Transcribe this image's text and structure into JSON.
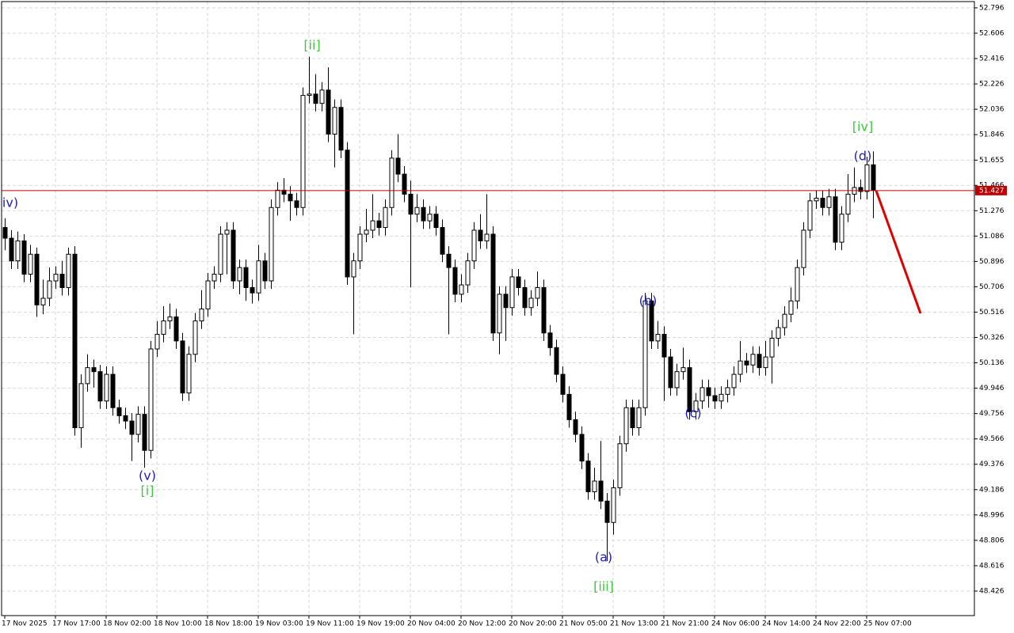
{
  "chart_data": {
    "type": "candlestick",
    "ylim": [
      48.242,
      52.843
    ],
    "xlim": [
      -0.5,
      153
    ],
    "yticks": [
      52.796,
      52.606,
      52.416,
      52.226,
      52.036,
      51.846,
      51.655,
      51.466,
      51.276,
      51.086,
      50.896,
      50.706,
      50.516,
      50.326,
      50.136,
      49.946,
      49.756,
      49.566,
      49.376,
      49.186,
      48.996,
      48.806,
      48.616,
      48.426
    ],
    "xticks": [
      {
        "value": 0,
        "label": "17 Nov 2025"
      },
      {
        "value": 8,
        "label": "17 Nov 17:00"
      },
      {
        "value": 16,
        "label": "18 Nov 02:00"
      },
      {
        "value": 24,
        "label": "18 Nov 10:00"
      },
      {
        "value": 32,
        "label": "18 Nov 18:00"
      },
      {
        "value": 40,
        "label": "19 Nov 03:00"
      },
      {
        "value": 48,
        "label": "19 Nov 11:00"
      },
      {
        "value": 56,
        "label": "19 Nov 19:00"
      },
      {
        "value": 64,
        "label": "20 Nov 04:00"
      },
      {
        "value": 72,
        "label": "20 Nov 12:00"
      },
      {
        "value": 80,
        "label": "20 Nov 20:00"
      },
      {
        "value": 88,
        "label": "21 Nov 05:00"
      },
      {
        "value": 96,
        "label": "21 Nov 13:00"
      },
      {
        "value": 104,
        "label": "21 Nov 21:00"
      },
      {
        "value": 112,
        "label": "24 Nov 06:00"
      },
      {
        "value": 120,
        "label": "24 Nov 14:00"
      },
      {
        "value": 128,
        "label": "24 Nov 22:00"
      },
      {
        "value": 136,
        "label": "25 Nov 07:00"
      }
    ],
    "grid": true,
    "current_price": 51.427,
    "current_price_color": "#c00000",
    "bull_color": "#ffffff",
    "bear_color": "#000000",
    "candles": [
      [
        51.15,
        51.22,
        50.98,
        51.07
      ],
      [
        51.07,
        51.13,
        50.84,
        50.9
      ],
      [
        50.9,
        51.12,
        50.84,
        51.05
      ],
      [
        51.05,
        51.1,
        50.74,
        50.8
      ],
      [
        50.8,
        51.02,
        50.74,
        50.95
      ],
      [
        50.95,
        51.0,
        50.48,
        50.57
      ],
      [
        50.57,
        50.76,
        50.5,
        50.62
      ],
      [
        50.62,
        50.85,
        50.56,
        50.75
      ],
      [
        50.75,
        50.86,
        50.69,
        50.8
      ],
      [
        50.8,
        50.9,
        50.64,
        50.7
      ],
      [
        50.7,
        51.0,
        50.64,
        50.95
      ],
      [
        50.95,
        51.01,
        49.59,
        49.65
      ],
      [
        49.65,
        50.05,
        49.5,
        49.98
      ],
      [
        49.98,
        50.2,
        49.92,
        50.1
      ],
      [
        50.1,
        50.16,
        49.95,
        50.07
      ],
      [
        50.07,
        50.12,
        49.79,
        49.85
      ],
      [
        49.85,
        50.11,
        49.79,
        50.05
      ],
      [
        50.05,
        50.11,
        49.74,
        49.8
      ],
      [
        49.8,
        49.86,
        49.68,
        49.74
      ],
      [
        49.74,
        49.8,
        49.64,
        49.7
      ],
      [
        49.7,
        49.76,
        49.4,
        49.6
      ],
      [
        49.6,
        49.81,
        49.54,
        49.75
      ],
      [
        49.75,
        49.81,
        49.35,
        49.48
      ],
      [
        49.48,
        50.3,
        49.42,
        50.24
      ],
      [
        50.24,
        50.45,
        50.18,
        50.35
      ],
      [
        50.35,
        50.56,
        50.29,
        50.45
      ],
      [
        50.45,
        50.58,
        50.39,
        50.48
      ],
      [
        50.48,
        50.54,
        50.24,
        50.3
      ],
      [
        50.3,
        50.36,
        49.85,
        49.91
      ],
      [
        49.91,
        50.26,
        49.85,
        50.2
      ],
      [
        50.2,
        50.51,
        50.14,
        50.45
      ],
      [
        50.45,
        50.68,
        50.39,
        50.54
      ],
      [
        50.54,
        50.81,
        50.48,
        50.75
      ],
      [
        50.75,
        50.86,
        50.69,
        50.8
      ],
      [
        50.8,
        51.16,
        50.74,
        51.1
      ],
      [
        51.1,
        51.19,
        50.8,
        51.13
      ],
      [
        51.13,
        51.19,
        50.69,
        50.75
      ],
      [
        50.75,
        50.91,
        50.65,
        50.85
      ],
      [
        50.85,
        50.91,
        50.6,
        50.7
      ],
      [
        50.7,
        50.76,
        50.58,
        50.66
      ],
      [
        50.66,
        51.02,
        50.6,
        50.9
      ],
      [
        50.9,
        50.96,
        50.69,
        50.75
      ],
      [
        50.75,
        51.36,
        50.69,
        51.3
      ],
      [
        51.3,
        51.49,
        51.24,
        51.43
      ],
      [
        51.43,
        51.52,
        51.34,
        51.4
      ],
      [
        51.4,
        51.46,
        51.2,
        51.35
      ],
      [
        51.35,
        51.41,
        51.24,
        51.3
      ],
      [
        51.3,
        52.2,
        51.24,
        52.14
      ],
      [
        52.14,
        52.43,
        52.08,
        52.15
      ],
      [
        52.15,
        52.3,
        52.02,
        52.08
      ],
      [
        52.08,
        52.24,
        52.02,
        52.18
      ],
      [
        52.18,
        52.35,
        51.79,
        51.85
      ],
      [
        51.85,
        52.11,
        51.6,
        52.05
      ],
      [
        52.05,
        52.11,
        51.67,
        51.73
      ],
      [
        51.73,
        51.79,
        50.72,
        50.78
      ],
      [
        50.78,
        50.96,
        50.35,
        50.9
      ],
      [
        50.9,
        51.16,
        50.84,
        51.1
      ],
      [
        51.1,
        51.29,
        51.04,
        51.13
      ],
      [
        51.13,
        51.4,
        51.07,
        51.2
      ],
      [
        51.2,
        51.26,
        51.09,
        51.15
      ],
      [
        51.15,
        51.36,
        51.09,
        51.3
      ],
      [
        51.3,
        51.73,
        51.24,
        51.67
      ],
      [
        51.67,
        51.85,
        51.49,
        51.55
      ],
      [
        51.55,
        51.61,
        51.34,
        51.4
      ],
      [
        51.4,
        51.5,
        50.7,
        51.25
      ],
      [
        51.25,
        51.4,
        51.19,
        51.3
      ],
      [
        51.3,
        51.36,
        51.14,
        51.2
      ],
      [
        51.2,
        51.31,
        51.14,
        51.25
      ],
      [
        51.25,
        51.31,
        51.09,
        51.15
      ],
      [
        51.15,
        51.21,
        50.89,
        50.95
      ],
      [
        50.95,
        51.01,
        50.35,
        50.85
      ],
      [
        50.85,
        50.91,
        50.59,
        50.65
      ],
      [
        50.65,
        50.8,
        50.59,
        50.72
      ],
      [
        50.72,
        50.96,
        50.66,
        50.9
      ],
      [
        50.9,
        51.19,
        50.84,
        51.13
      ],
      [
        51.13,
        51.25,
        50.99,
        51.05
      ],
      [
        51.05,
        51.4,
        50.99,
        51.1
      ],
      [
        51.1,
        51.16,
        50.3,
        50.36
      ],
      [
        50.36,
        50.71,
        50.2,
        50.65
      ],
      [
        50.65,
        50.71,
        50.3,
        50.55
      ],
      [
        50.55,
        50.84,
        50.49,
        50.78
      ],
      [
        50.78,
        50.84,
        50.64,
        50.7
      ],
      [
        50.7,
        50.76,
        50.49,
        50.55
      ],
      [
        50.55,
        50.68,
        50.49,
        50.62
      ],
      [
        50.62,
        50.82,
        50.56,
        50.7
      ],
      [
        50.7,
        50.76,
        50.3,
        50.36
      ],
      [
        50.36,
        50.42,
        50.19,
        50.25
      ],
      [
        50.25,
        50.31,
        49.99,
        50.05
      ],
      [
        50.05,
        50.11,
        49.84,
        49.9
      ],
      [
        49.9,
        49.96,
        49.65,
        49.71
      ],
      [
        49.71,
        49.77,
        49.54,
        49.6
      ],
      [
        49.6,
        49.66,
        49.34,
        49.4
      ],
      [
        49.4,
        49.46,
        49.11,
        49.17
      ],
      [
        49.17,
        49.35,
        49.11,
        49.25
      ],
      [
        49.25,
        49.55,
        49.04,
        49.1
      ],
      [
        49.1,
        49.16,
        48.65,
        48.94
      ],
      [
        48.94,
        49.26,
        48.85,
        49.2
      ],
      [
        49.2,
        49.59,
        49.14,
        49.53
      ],
      [
        49.53,
        49.86,
        49.47,
        49.8
      ],
      [
        49.8,
        49.86,
        49.59,
        49.65
      ],
      [
        49.65,
        49.86,
        49.59,
        49.8
      ],
      [
        49.8,
        50.66,
        49.74,
        50.6
      ],
      [
        50.6,
        50.66,
        50.24,
        50.3
      ],
      [
        50.3,
        50.45,
        50.24,
        50.35
      ],
      [
        50.35,
        50.41,
        49.85,
        50.18
      ],
      [
        50.18,
        50.24,
        49.89,
        49.95
      ],
      [
        49.95,
        50.13,
        49.89,
        50.07
      ],
      [
        50.07,
        50.25,
        50.01,
        50.1
      ],
      [
        50.1,
        50.16,
        49.71,
        49.77
      ],
      [
        49.77,
        49.91,
        49.71,
        49.85
      ],
      [
        49.85,
        50.01,
        49.79,
        49.95
      ],
      [
        49.95,
        50.01,
        49.8,
        49.89
      ],
      [
        49.89,
        49.95,
        49.79,
        49.85
      ],
      [
        49.85,
        49.96,
        49.79,
        49.9
      ],
      [
        49.9,
        50.01,
        49.84,
        49.95
      ],
      [
        49.95,
        50.11,
        49.89,
        50.05
      ],
      [
        50.05,
        50.3,
        49.99,
        50.15
      ],
      [
        50.15,
        50.21,
        50.06,
        50.12
      ],
      [
        50.12,
        50.26,
        50.06,
        50.2
      ],
      [
        50.2,
        50.26,
        50.04,
        50.1
      ],
      [
        50.1,
        50.3,
        50.04,
        50.18
      ],
      [
        50.18,
        50.38,
        49.98,
        50.32
      ],
      [
        50.32,
        50.46,
        50.26,
        50.4
      ],
      [
        50.4,
        50.56,
        50.34,
        50.5
      ],
      [
        50.5,
        50.7,
        50.44,
        50.6
      ],
      [
        50.6,
        50.91,
        50.54,
        50.85
      ],
      [
        50.85,
        51.19,
        50.79,
        51.13
      ],
      [
        51.13,
        51.41,
        51.07,
        51.35
      ],
      [
        51.35,
        51.43,
        51.29,
        51.37
      ],
      [
        51.37,
        51.43,
        51.24,
        51.3
      ],
      [
        51.3,
        51.44,
        51.24,
        51.38
      ],
      [
        51.38,
        51.44,
        50.98,
        51.04
      ],
      [
        51.04,
        51.31,
        50.98,
        51.25
      ],
      [
        51.25,
        51.55,
        51.19,
        51.4
      ],
      [
        51.4,
        51.6,
        51.34,
        51.45
      ],
      [
        51.45,
        51.51,
        51.36,
        51.42
      ],
      [
        51.42,
        51.68,
        51.36,
        51.62
      ],
      [
        51.62,
        51.72,
        51.22,
        51.43
      ]
    ],
    "annotations": [
      {
        "text": "iv)",
        "color": "#2020c0"
      },
      {
        "text": "[ii]",
        "color": "#3ec93e"
      },
      {
        "text": "(v)",
        "color": "#2020c0"
      },
      {
        "text": "[i]",
        "color": "#3ec93e"
      },
      {
        "text": "[iv]",
        "color": "#3ec93e"
      },
      {
        "text": "(d)",
        "color": "#2020c0"
      },
      {
        "text": "(b)",
        "color": "#2020c0"
      },
      {
        "text": "(c)",
        "color": "#2020c0"
      },
      {
        "text": "(a)",
        "color": "#2020c0"
      },
      {
        "text": "[iii]",
        "color": "#3ec93e"
      }
    ]
  }
}
